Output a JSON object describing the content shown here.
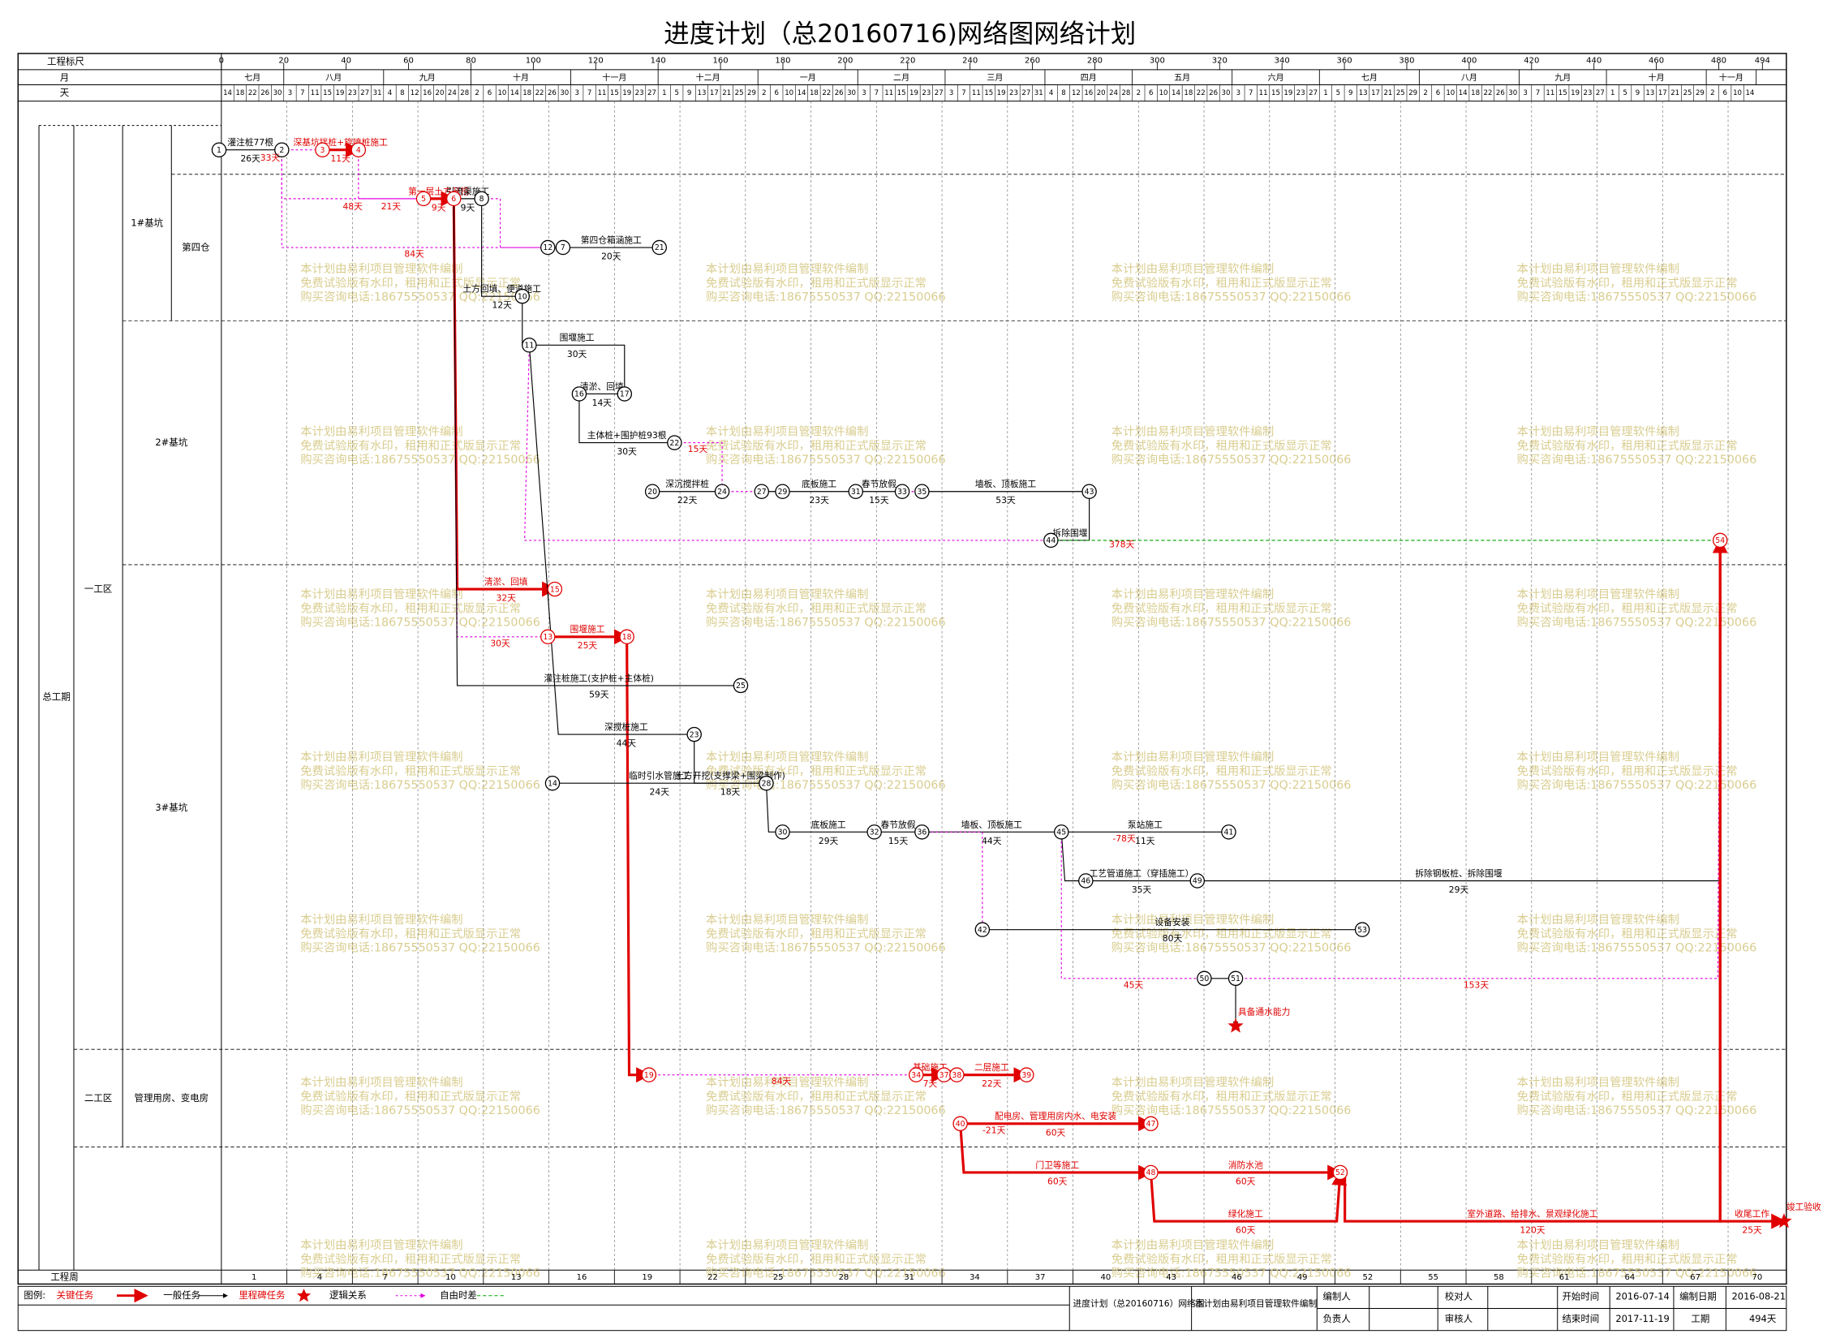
{
  "title": "进度计划（总20160716)网络图网络计划",
  "header": {
    "scale": "工程标尺",
    "month": "月",
    "day": "天",
    "week": "工程周"
  },
  "scale_ticks": [
    0,
    20,
    40,
    60,
    80,
    100,
    120,
    140,
    160,
    180,
    200,
    220,
    240,
    260,
    280,
    300,
    320,
    340,
    360,
    380,
    400,
    420,
    440,
    460,
    480,
    494
  ],
  "months": [
    "七月",
    "八月",
    "九月",
    "十月",
    "十一月",
    "十二月",
    "一月",
    "二月",
    "三月",
    "四月",
    "五月",
    "六月",
    "七月",
    "八月",
    "九月",
    "十月",
    "十一月"
  ],
  "days": [
    14,
    18,
    22,
    26,
    30,
    3,
    7,
    11,
    15,
    19,
    23,
    27,
    31,
    4,
    8,
    12,
    16,
    20,
    24,
    28,
    2,
    6,
    10,
    14,
    18,
    22,
    26,
    30,
    3,
    7,
    11,
    15,
    19,
    23,
    27,
    1,
    5,
    9,
    13,
    17,
    21,
    25,
    29,
    2,
    6,
    10,
    14,
    18,
    22,
    26,
    30,
    3,
    7,
    11,
    15,
    19,
    23,
    27,
    3,
    7,
    11,
    15,
    19,
    23,
    27,
    31,
    4,
    8,
    12,
    16,
    20,
    24,
    28,
    2,
    6,
    10,
    14,
    18,
    22,
    26,
    30,
    3,
    7,
    11,
    15,
    19,
    23,
    27,
    1,
    5,
    9,
    13,
    17,
    21,
    25,
    29,
    2,
    6,
    10,
    14,
    18,
    22,
    26,
    30,
    3,
    7,
    11,
    15,
    19,
    23,
    27,
    1,
    5,
    9,
    13,
    17,
    21,
    25,
    29,
    2,
    6,
    10,
    14
  ],
  "weeks": [
    1,
    4,
    7,
    10,
    13,
    16,
    19,
    22,
    25,
    28,
    31,
    34,
    37,
    40,
    43,
    46,
    49,
    52,
    55,
    58,
    61,
    64,
    67,
    70
  ],
  "areas": {
    "total": "总工期",
    "zone1": "一工区",
    "zone2": "二工区",
    "pit1": "1#基坑",
    "bin4": "第四仓",
    "pit2": "2#基坑",
    "pit3": "3#基坑",
    "bldg": "管理用房、变电房"
  },
  "nodes": [
    "1",
    "2",
    "3",
    "4",
    "5",
    "6",
    "8",
    "12",
    "7",
    "21",
    "10",
    "11",
    "16",
    "17",
    "22",
    "20",
    "24",
    "27",
    "29",
    "31",
    "33",
    "35",
    "43",
    "44",
    "54",
    "15",
    "13",
    "18",
    "25",
    "23",
    "14",
    "28",
    "30",
    "32",
    "36",
    "45",
    "41",
    "46",
    "49",
    "42",
    "53",
    "50",
    "51",
    "19",
    "34",
    "37",
    "38",
    "39",
    "40",
    "47",
    "48",
    "52"
  ],
  "milestones": [
    "具备通水能力",
    "竣工验收"
  ],
  "tasks": [
    {
      "name": "灌注桩77根",
      "duration": "26天"
    },
    {
      "name": "深基坑拌桩+旋喷桩施工",
      "duration": "11天"
    },
    {
      "name": "第一层土方开挖",
      "duration": "9天"
    },
    {
      "name": "引流渠施工",
      "duration": "9天"
    },
    {
      "name": "第四仓箱涵施工",
      "duration": "20天"
    },
    {
      "name": "土方回填、便道施工",
      "duration": "12天"
    },
    {
      "name": "围堰施工",
      "duration": "30天"
    },
    {
      "name": "清淤、回填",
      "duration": "14天"
    },
    {
      "name": "主体桩+围护桩93根",
      "duration": "30天"
    },
    {
      "name": "深沉搅拌桩",
      "duration": "22天"
    },
    {
      "name": "底板施工",
      "duration": "23天"
    },
    {
      "name": "春节放假",
      "duration": "15天"
    },
    {
      "name": "墙板、顶板施工",
      "duration": "53天"
    },
    {
      "name": "拆除围堰"
    },
    {
      "name": "清淤、回填",
      "duration": "32天"
    },
    {
      "name": "围堰施工",
      "duration": "25天"
    },
    {
      "name": "灌注桩施工(支护桩+主体桩)",
      "duration": "59天"
    },
    {
      "name": "深搅桩施工",
      "duration": "44天"
    },
    {
      "name": "临时引水管施工",
      "duration": "24天"
    },
    {
      "name": "土方开挖(支撑梁+围梁制作)",
      "duration": "18天"
    },
    {
      "name": "底板施工",
      "duration": "29天"
    },
    {
      "name": "春节放假",
      "duration": "15天"
    },
    {
      "name": "墙板、顶板施工",
      "duration": "44天"
    },
    {
      "name": "泵站施工",
      "duration": "11天"
    },
    {
      "name": "工艺管道施工（穿插施工）",
      "duration": "35天"
    },
    {
      "name": "拆除钢板桩、拆除围堰",
      "duration": "29天"
    },
    {
      "name": "设备安装",
      "duration": "80天"
    },
    {
      "name": "基础施工",
      "duration": "7天"
    },
    {
      "name": "二层施工",
      "duration": "22天"
    },
    {
      "name": "配电房、管理用房内水、电安装",
      "duration": "60天"
    },
    {
      "name": "门卫等施工",
      "duration": "60天"
    },
    {
      "name": "消防水池",
      "duration": "60天"
    },
    {
      "name": "绿化施工",
      "duration": "60天"
    },
    {
      "name": "室外道路、给排水、景观绿化施工",
      "duration": "120天"
    },
    {
      "name": "收尾工作",
      "duration": "25天"
    }
  ],
  "floats": [
    "33天",
    "21天",
    "48天",
    "84天",
    "378天",
    "30天",
    "45天",
    "153天",
    "84天",
    "15天",
    "-78天",
    "-21天"
  ],
  "watermark": [
    "本计划由易利项目管理软件编制",
    "免费试验版有水印，租用和正式版显示正常",
    "购买咨询电话:18675550537 QQ:22150066"
  ],
  "legend": {
    "label": "图例:",
    "items": [
      "关键任务",
      "一般任务",
      "里程碑任务",
      "逻辑关系",
      "自由时差"
    ]
  },
  "info": {
    "plan": "进度计划（总20160716）网络图",
    "software": "本计划由易利项目管理软件编制",
    "compiler": "编制人",
    "owner": "负责人",
    "checker": "校对人",
    "reviewer": "审核人",
    "start_label": "开始时间",
    "start": "2016-07-14",
    "end_label": "结束时间",
    "end": "2017-11-19",
    "date_label": "编制日期",
    "date": "2016-08-21",
    "period_label": "工期",
    "period": "494天"
  }
}
